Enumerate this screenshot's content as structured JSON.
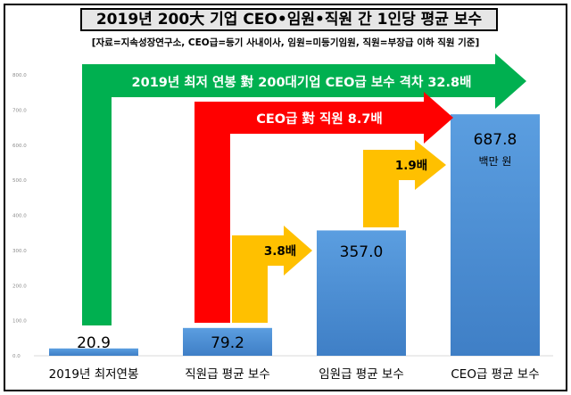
{
  "title": "2019년 200大 기업 CEO•임원•직원 간 1인당 평균 보수",
  "subtitle": "[자료=지속성장연구소, CEO급=등기 사내이사, 임원=미등기임원, 직원=부장급 이하 직원 기준]",
  "colors": {
    "bar_top": "#5b9ee0",
    "bar_bottom": "#3f7fc6",
    "green": "#00b050",
    "red": "#ff0000",
    "gold": "#ffc000"
  },
  "chart_data": {
    "type": "bar",
    "categories": [
      "2019년 최저연봉",
      "직원급 평균 보수",
      "임원급 평균 보수",
      "CEO급 평균 보수"
    ],
    "values": [
      20.9,
      79.2,
      357.0,
      687.8
    ],
    "value_labels": [
      "20.9",
      "79.2",
      "357.0",
      "687.8"
    ],
    "unit_label": "백만 원",
    "ylim": [
      0,
      800
    ],
    "yticks": [
      "0.0",
      "100.0",
      "200.0",
      "300.0",
      "400.0",
      "500.0",
      "600.0",
      "700.0",
      "800.0"
    ],
    "grid": false,
    "annotations": [
      {
        "name": "green-arrow",
        "text": "2019년 최저 연봉 對  200대기업 CEO급 보수 격차 32.8배"
      },
      {
        "name": "red-arrow",
        "text": "CEO급 對 직원  8.7배"
      },
      {
        "name": "gold-arrow-1",
        "text": "3.8배"
      },
      {
        "name": "gold-arrow-2",
        "text": "1.9배"
      }
    ]
  }
}
